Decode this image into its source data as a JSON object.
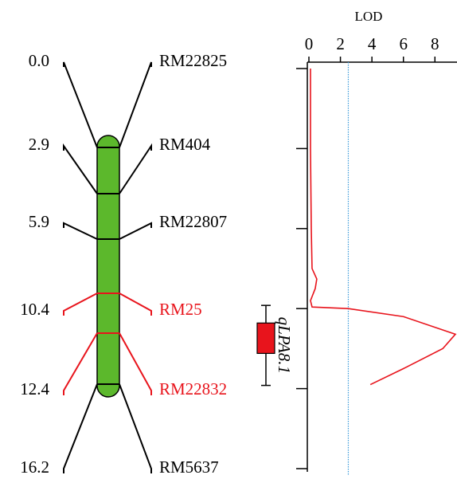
{
  "linkage_map": {
    "markers": [
      {
        "position": "0.0",
        "name": "RM22825",
        "color": "#000000"
      },
      {
        "position": "2.9",
        "name": "RM404",
        "color": "#000000"
      },
      {
        "position": "5.9",
        "name": "RM22807",
        "color": "#000000"
      },
      {
        "position": "10.4",
        "name": "RM25",
        "color": "#e8141c"
      },
      {
        "position": "12.4",
        "name": "RM22832",
        "color": "#e8141c"
      },
      {
        "position": "16.2",
        "name": "RM5637",
        "color": "#000000"
      }
    ],
    "chromosome_color": "#5cb82c"
  },
  "chart_data": {
    "type": "line",
    "xlabel": "LOD",
    "series": [
      {
        "color": "#e8141c",
        "x": [
          0.1,
          0.1,
          0.15,
          0.2,
          0.5,
          0.4,
          0.1,
          0.2,
          2.5,
          6,
          9.3,
          8.5,
          6,
          3.9
        ],
        "values": [
          0,
          1.0,
          2.0,
          2.5,
          2.63,
          2.75,
          2.9,
          2.98,
          3.0,
          3.1,
          3.32,
          3.5,
          3.75,
          3.95
        ]
      }
    ],
    "xlim": [
      0,
      9.3
    ],
    "xticks": [
      0,
      2,
      4,
      6,
      8
    ],
    "ylim": [
      0,
      5.0
    ],
    "yticks": [
      0,
      1,
      2,
      3,
      4,
      5
    ],
    "threshold": 2.5,
    "threshold_color": "#3a9ad9",
    "qtl": {
      "label": "qLPA8.1",
      "start": 2.96,
      "end": 3.96,
      "box_start": 3.18,
      "box_end": 3.56,
      "color": "#e8141c"
    }
  }
}
